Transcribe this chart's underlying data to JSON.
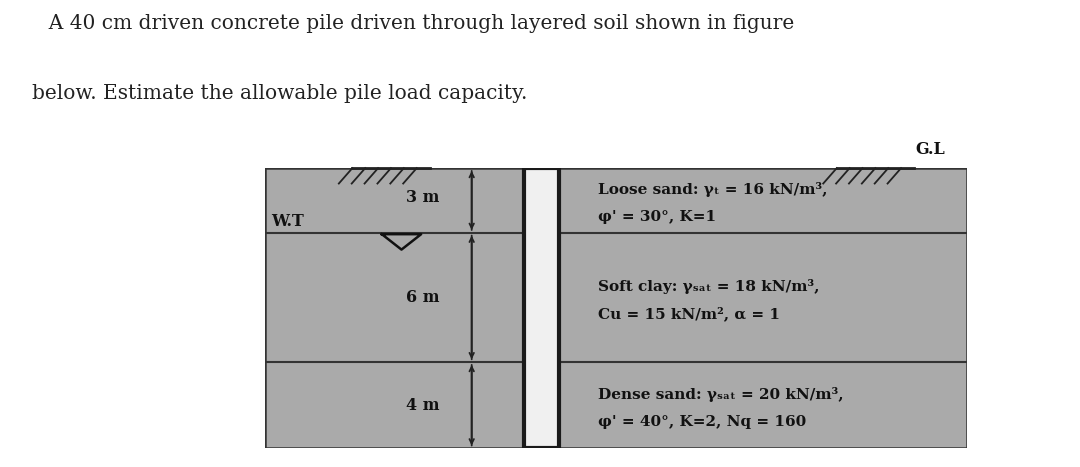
{
  "title_line1": "   A 40 cm driven concrete pile driven through layered soil shown in figure",
  "title_line2": "below. Estimate the allowable pile load capacity.",
  "title_fontsize": 14.5,
  "title_color": "#222222",
  "bg_color": "#aaaaaa",
  "figure_bg": "#ffffff",
  "layer_labels": [
    [
      "Loose sand: γₜ = 16 kN/m³,",
      "φ' = 30°, K=1"
    ],
    [
      "Soft clay: γₛₐₜ = 18 kN/m³,",
      "Cu = 15 kN/m², α = 1"
    ],
    [
      "Dense sand: γₛₐₜ = 20 kN/m³,",
      "φ' = 40°, K=2, Nq = 160"
    ]
  ],
  "layer_depths_label": [
    "3 m",
    "6 m",
    "4 m"
  ],
  "pile_wall_color": "#1a1a1a",
  "pile_fill_color": "#f0f0f0",
  "line_color": "#333333",
  "text_color": "#111111",
  "label_fontsize": 11.0,
  "depth_fontsize": 11.5,
  "wt_label": "W.T",
  "gl_label": "G.L",
  "total_depth": 13.0,
  "layer_depths": [
    3.0,
    6.0,
    4.0
  ]
}
